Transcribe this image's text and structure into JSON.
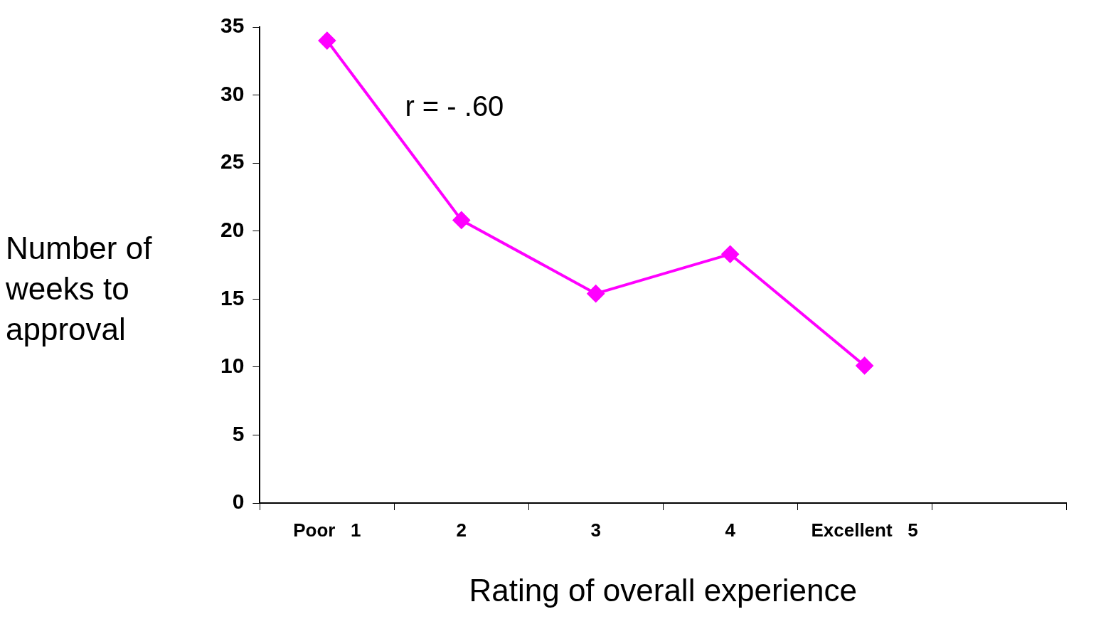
{
  "chart_data": {
    "type": "line",
    "xlabel": "Rating of overall experience",
    "ylabel": "Number of weeks to approval",
    "categories": [
      "Poor   1",
      "2",
      "3",
      "4",
      "Excellent   5",
      null
    ],
    "series": [
      {
        "color": "#ff00ff",
        "values": [
          34.0,
          20.8,
          15.4,
          18.3,
          10.1,
          null
        ]
      }
    ],
    "ylim": [
      0,
      35
    ],
    "yticks": [
      0,
      5,
      10,
      15,
      20,
      25,
      30,
      35
    ],
    "grid": false,
    "legend": false,
    "marker": "diamond",
    "line_style": "solid",
    "annotations": [
      "r = - .60"
    ]
  }
}
